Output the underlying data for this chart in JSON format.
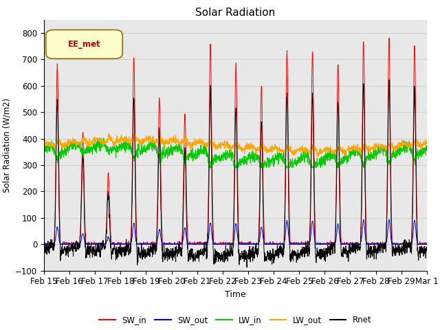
{
  "title": "Solar Radiation",
  "xlabel": "Time",
  "ylabel": "Solar Radiation (W/m2)",
  "ylim": [
    -100,
    850
  ],
  "xtick_labels": [
    "Feb 15",
    "Feb 16",
    "Feb 17",
    "Feb 18",
    "Feb 19",
    "Feb 20",
    "Feb 21",
    "Feb 22",
    "Feb 23",
    "Feb 24",
    "Feb 25",
    "Feb 26",
    "Feb 27",
    "Feb 28",
    "Feb 29",
    "Mar 1"
  ],
  "colors": {
    "SW_in": "#ff0000",
    "SW_out": "#0000ff",
    "LW_in": "#00cc00",
    "LW_out": "#ffa500",
    "Rnet": "#000000"
  },
  "annotation_text": "EE_met",
  "annotation_bg": "#ffffcc",
  "annotation_border": "#996600",
  "annotation_text_color": "#cc0000",
  "grid_color": "#d0d0d0",
  "bg_color": "#e8e8e8"
}
